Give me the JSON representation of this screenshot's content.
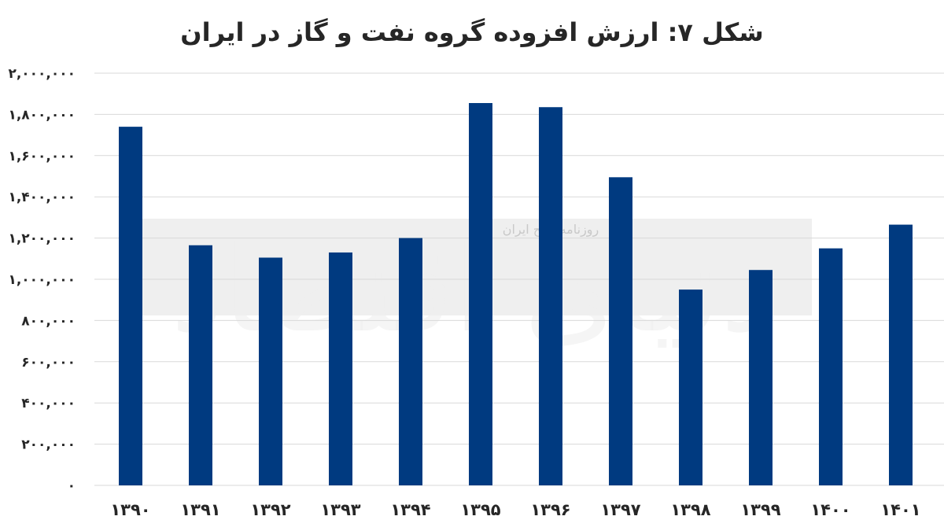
{
  "chart_data": {
    "type": "bar",
    "title": "شکل ۷: ارزش افزوده گروه نفت و گاز در ایران",
    "categories": [
      "۱۳۹۰",
      "۱۳۹۱",
      "۱۳۹۲",
      "۱۳۹۳",
      "۱۳۹۴",
      "۱۳۹۵",
      "۱۳۹۶",
      "۱۳۹۷",
      "۱۳۹۸",
      "۱۳۹۹",
      "۱۴۰۰",
      "۱۴۰۱"
    ],
    "values": [
      1740000,
      1165000,
      1105000,
      1130000,
      1200000,
      1855000,
      1835000,
      1495000,
      950000,
      1045000,
      1150000,
      1265000
    ],
    "ylim": [
      0,
      2000000
    ],
    "yticks": [
      {
        "value": 0,
        "label": "۰"
      },
      {
        "value": 200000,
        "label": "۲۰۰,۰۰۰"
      },
      {
        "value": 400000,
        "label": "۴۰۰,۰۰۰"
      },
      {
        "value": 600000,
        "label": "۶۰۰,۰۰۰"
      },
      {
        "value": 800000,
        "label": "۸۰۰,۰۰۰"
      },
      {
        "value": 1000000,
        "label": "۱,۰۰۰,۰۰۰"
      },
      {
        "value": 1200000,
        "label": "۱,۲۰۰,۰۰۰"
      },
      {
        "value": 1400000,
        "label": "۱,۴۰۰,۰۰۰"
      },
      {
        "value": 1600000,
        "label": "۱,۶۰۰,۰۰۰"
      },
      {
        "value": 1800000,
        "label": "۱,۸۰۰,۰۰۰"
      },
      {
        "value": 2000000,
        "label": "۲,۰۰۰,۰۰۰"
      }
    ],
    "xlabel": "",
    "ylabel": "",
    "grid": true,
    "legend": "none",
    "bar_color": "#003a80"
  },
  "watermark": {
    "text": "روزنامه صبح ایران",
    "logo": "دنیای اقتصاد"
  }
}
